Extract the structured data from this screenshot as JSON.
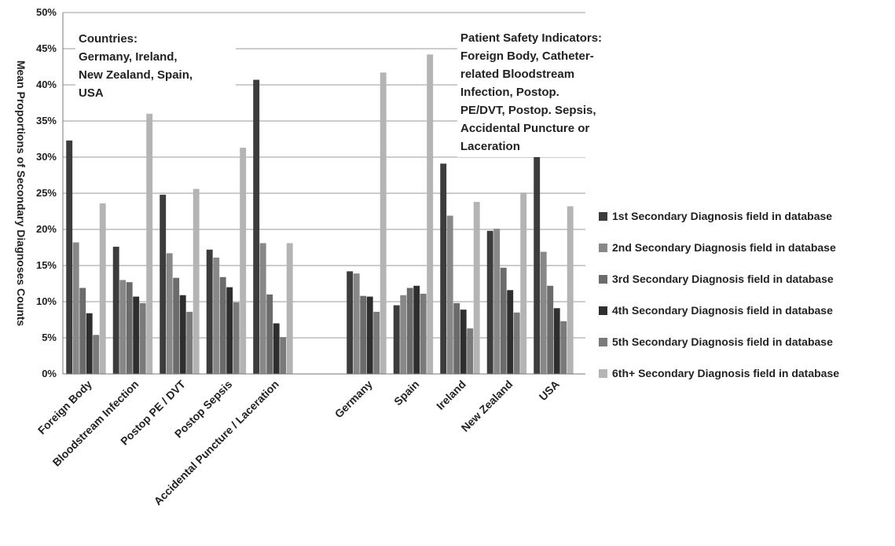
{
  "chart_data": {
    "type": "bar",
    "ylabel": "Mean Proportions of Secondary Diagnoses Counts",
    "ylim": [
      0,
      50
    ],
    "yticks": [
      "0%",
      "5%",
      "10%",
      "15%",
      "20%",
      "25%",
      "30%",
      "35%",
      "40%",
      "45%",
      "50%"
    ],
    "grid": true,
    "legend_position": "right",
    "categories": [
      "Foreign Body",
      "Bloodstream Infection",
      "Postop PE / DVT",
      "Postop Sepsis",
      "Accidental Puncture / Laceration",
      "Germany",
      "Spain",
      "Ireland",
      "New Zealand",
      "USA"
    ],
    "series": [
      {
        "name": "1st  Secondary Diagnosis field in database",
        "color": "#3c3c3c",
        "values": [
          32.3,
          17.6,
          24.8,
          17.2,
          40.7,
          14.2,
          9.5,
          29.1,
          19.8,
          31.0
        ]
      },
      {
        "name": "2nd  Secondary Diagnosis field in database",
        "color": "#888888",
        "values": [
          18.2,
          13.0,
          16.7,
          16.1,
          18.1,
          13.9,
          10.9,
          21.9,
          20.1,
          16.9
        ]
      },
      {
        "name": "3rd  Secondary Diagnosis field in database",
        "color": "#6b6b6b",
        "values": [
          11.9,
          12.7,
          13.3,
          13.4,
          11.0,
          10.8,
          11.9,
          9.8,
          14.7,
          12.2
        ]
      },
      {
        "name": "4th  Secondary Diagnosis field in database",
        "color": "#2e2e2e",
        "values": [
          8.4,
          10.7,
          10.9,
          12.0,
          7.0,
          10.7,
          12.2,
          8.9,
          11.6,
          9.1
        ]
      },
      {
        "name": "5th  Secondary Diagnosis field in database",
        "color": "#7a7a7a",
        "values": [
          5.4,
          9.8,
          8.6,
          9.9,
          5.1,
          8.6,
          11.1,
          6.3,
          8.5,
          7.3
        ]
      },
      {
        "name": "6th+  Secondary Diagnosis field in database",
        "color": "#b4b4b4",
        "values": [
          23.6,
          36.0,
          25.6,
          31.3,
          18.1,
          41.7,
          44.2,
          23.8,
          25.1,
          23.2
        ]
      }
    ],
    "annotations": [
      {
        "text": "Countries:\nGermany, Ireland,\nNew Zealand, Spain,\nUSA"
      },
      {
        "text": "Patient Safety Indicators:\nForeign Body, Catheter-\nrelated Bloodstream\nInfection, Postop.\nPE/DVT, Postop. Sepsis,\nAccidental Puncture or\nLaceration"
      }
    ]
  }
}
